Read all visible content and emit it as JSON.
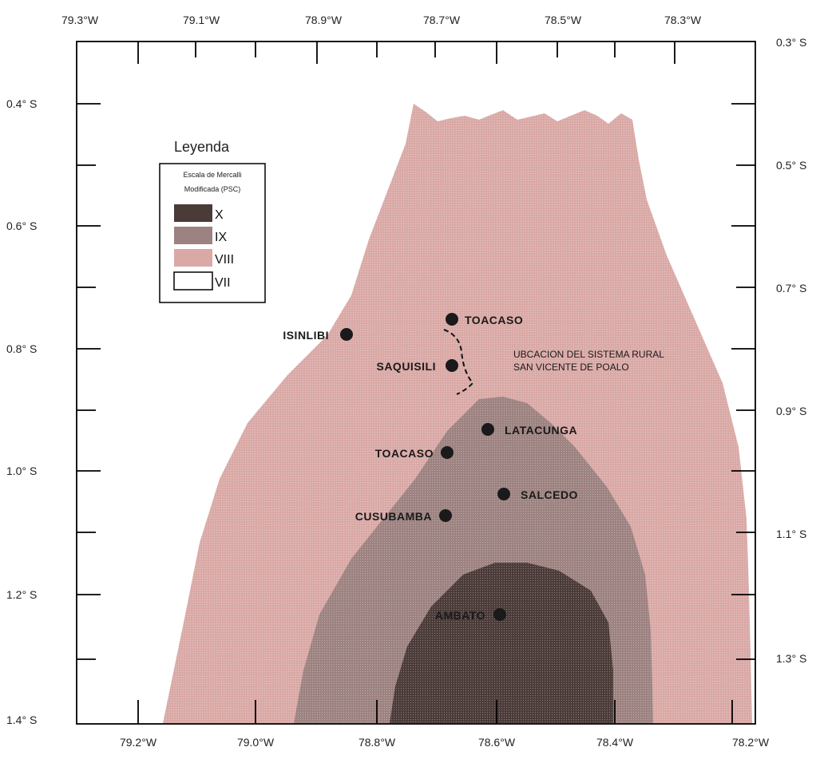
{
  "map": {
    "top_lon_labels": [
      "79.3°W",
      "79.1°W",
      "78.9°W",
      "78.7°W",
      "78.5°W",
      "78.3°W"
    ],
    "bottom_lon_labels": [
      "79.2°W",
      "79.0°W",
      "78.8°W",
      "78.6°W",
      "78.4°W",
      "78.2°W"
    ],
    "left_lat_labels": [
      "0.4° S",
      "0.6° S",
      "0.8° S",
      "1.0° S",
      "1.2° S",
      "1.4° S"
    ],
    "right_lat_labels": [
      "0.3° S",
      "0.5° S",
      "0.7° S",
      "0.9° S",
      "1.1° S",
      "1.3° S"
    ],
    "legend": {
      "title": "Leyenda",
      "subtitle_line1": "Escala de Mercalli",
      "subtitle_line2": "Modificada (PSC)",
      "items": [
        {
          "label": "X",
          "color": "#4a3a38"
        },
        {
          "label": "IX",
          "color": "#9c8280"
        },
        {
          "label": "VIII",
          "color": "#d9a9a6"
        },
        {
          "label": "VII",
          "color": "#ffffff"
        }
      ]
    },
    "cities": [
      {
        "name": "TOACASO"
      },
      {
        "name": "ISINLIBI"
      },
      {
        "name": "SAQUISILI"
      },
      {
        "name": "LATACUNGA"
      },
      {
        "name": "TOACASO"
      },
      {
        "name": "SALCEDO"
      },
      {
        "name": "CUSUBAMBA"
      },
      {
        "name": "AMBATO"
      }
    ],
    "annotation_line1": "UBCACION DEL SISTEMA RURAL",
    "annotation_line2": "SAN VICENTE DE POALO",
    "colors": {
      "zone_viii": "#d9a9a6",
      "zone_ix": "#9c8280",
      "zone_x": "#4a3a38",
      "frame": "#000000"
    }
  }
}
